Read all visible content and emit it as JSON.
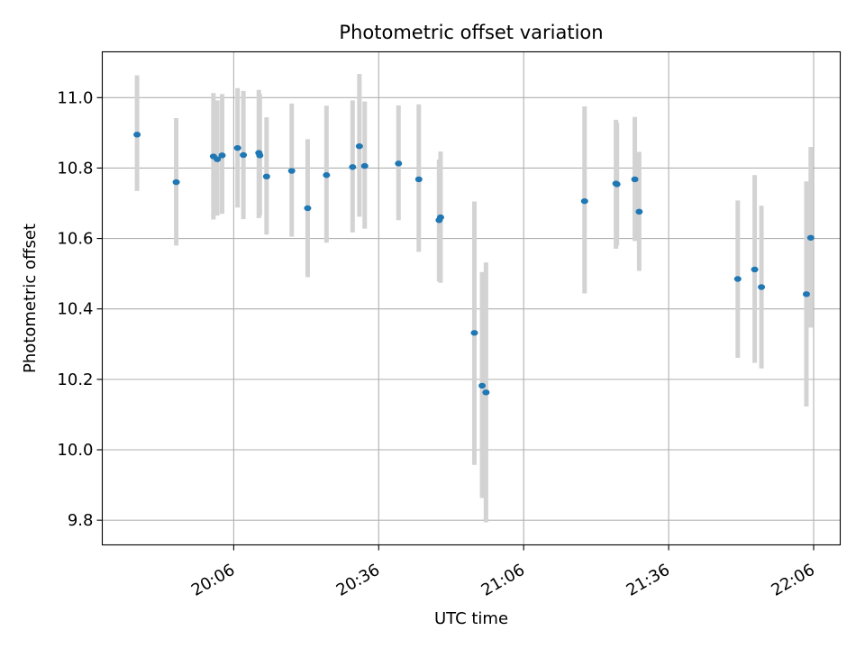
{
  "chart_data": {
    "type": "scatter",
    "title": "Photometric offset variation",
    "xlabel": "UTC time",
    "ylabel": "Photometric offset",
    "x_ticks": [
      "20:06",
      "20:36",
      "21:06",
      "21:36",
      "22:06"
    ],
    "y_ticks": [
      "9.8",
      "10.0",
      "10.2",
      "10.4",
      "10.6",
      "10.8",
      "11.0"
    ],
    "xlim": [
      "19:38.8",
      "22:11.5"
    ],
    "ylim": [
      9.73,
      11.13
    ],
    "grid": true,
    "error_bar_color": "#d3d3d3",
    "point_color": "#1f77b4",
    "series": [
      {
        "points": [
          {
            "x": "19:46.0",
            "y": 10.895,
            "lo": 10.735,
            "hi": 11.063
          },
          {
            "x": "19:54.1",
            "y": 10.76,
            "lo": 10.58,
            "hi": 10.942
          },
          {
            "x": "20:01.8",
            "y": 10.833,
            "lo": 10.654,
            "hi": 11.013
          },
          {
            "x": "20:02.6",
            "y": 10.825,
            "lo": 10.665,
            "hi": 10.992
          },
          {
            "x": "20:03.6",
            "y": 10.836,
            "lo": 10.67,
            "hi": 11.01
          },
          {
            "x": "20:06.8",
            "y": 10.857,
            "lo": 10.688,
            "hi": 11.027
          },
          {
            "x": "20:08.0",
            "y": 10.837,
            "lo": 10.655,
            "hi": 11.019
          },
          {
            "x": "20:11.2",
            "y": 10.843,
            "lo": 10.658,
            "hi": 11.022
          },
          {
            "x": "20:11.4",
            "y": 10.836,
            "lo": 10.665,
            "hi": 11.01
          },
          {
            "x": "20:12.8",
            "y": 10.776,
            "lo": 10.611,
            "hi": 10.944
          },
          {
            "x": "20:18.0",
            "y": 10.792,
            "lo": 10.605,
            "hi": 10.983
          },
          {
            "x": "20:21.3",
            "y": 10.686,
            "lo": 10.49,
            "hi": 10.882
          },
          {
            "x": "20:25.2",
            "y": 10.78,
            "lo": 10.588,
            "hi": 10.977
          },
          {
            "x": "20:30.6",
            "y": 10.803,
            "lo": 10.617,
            "hi": 10.992
          },
          {
            "x": "20:32.0",
            "y": 10.862,
            "lo": 10.662,
            "hi": 11.067
          },
          {
            "x": "20:33.1",
            "y": 10.806,
            "lo": 10.628,
            "hi": 10.989
          },
          {
            "x": "20:40.1",
            "y": 10.813,
            "lo": 10.652,
            "hi": 10.978
          },
          {
            "x": "20:44.3",
            "y": 10.768,
            "lo": 10.562,
            "hi": 10.981
          },
          {
            "x": "20:48.5",
            "y": 10.652,
            "lo": 10.478,
            "hi": 10.824
          },
          {
            "x": "20:48.8",
            "y": 10.66,
            "lo": 10.474,
            "hi": 10.847
          },
          {
            "x": "20:55.8",
            "y": 10.332,
            "lo": 9.957,
            "hi": 10.705
          },
          {
            "x": "20:57.4",
            "y": 10.182,
            "lo": 9.863,
            "hi": 10.505
          },
          {
            "x": "20:58.2",
            "y": 10.163,
            "lo": 9.794,
            "hi": 10.532
          },
          {
            "x": "21:18.6",
            "y": 10.706,
            "lo": 10.444,
            "hi": 10.975
          },
          {
            "x": "21:25.1",
            "y": 10.756,
            "lo": 10.571,
            "hi": 10.937
          },
          {
            "x": "21:25.3",
            "y": 10.754,
            "lo": 10.58,
            "hi": 10.928
          },
          {
            "x": "21:29.0",
            "y": 10.768,
            "lo": 10.593,
            "hi": 10.945
          },
          {
            "x": "21:29.9",
            "y": 10.676,
            "lo": 10.508,
            "hi": 10.846
          },
          {
            "x": "21:50.3",
            "y": 10.485,
            "lo": 10.261,
            "hi": 10.708
          },
          {
            "x": "21:53.8",
            "y": 10.512,
            "lo": 10.247,
            "hi": 10.78
          },
          {
            "x": "21:55.2",
            "y": 10.462,
            "lo": 10.231,
            "hi": 10.693
          },
          {
            "x": "22:04.5",
            "y": 10.442,
            "lo": 10.123,
            "hi": 10.762
          },
          {
            "x": "22:05.4",
            "y": 10.602,
            "lo": 10.347,
            "hi": 10.86
          }
        ]
      }
    ]
  }
}
